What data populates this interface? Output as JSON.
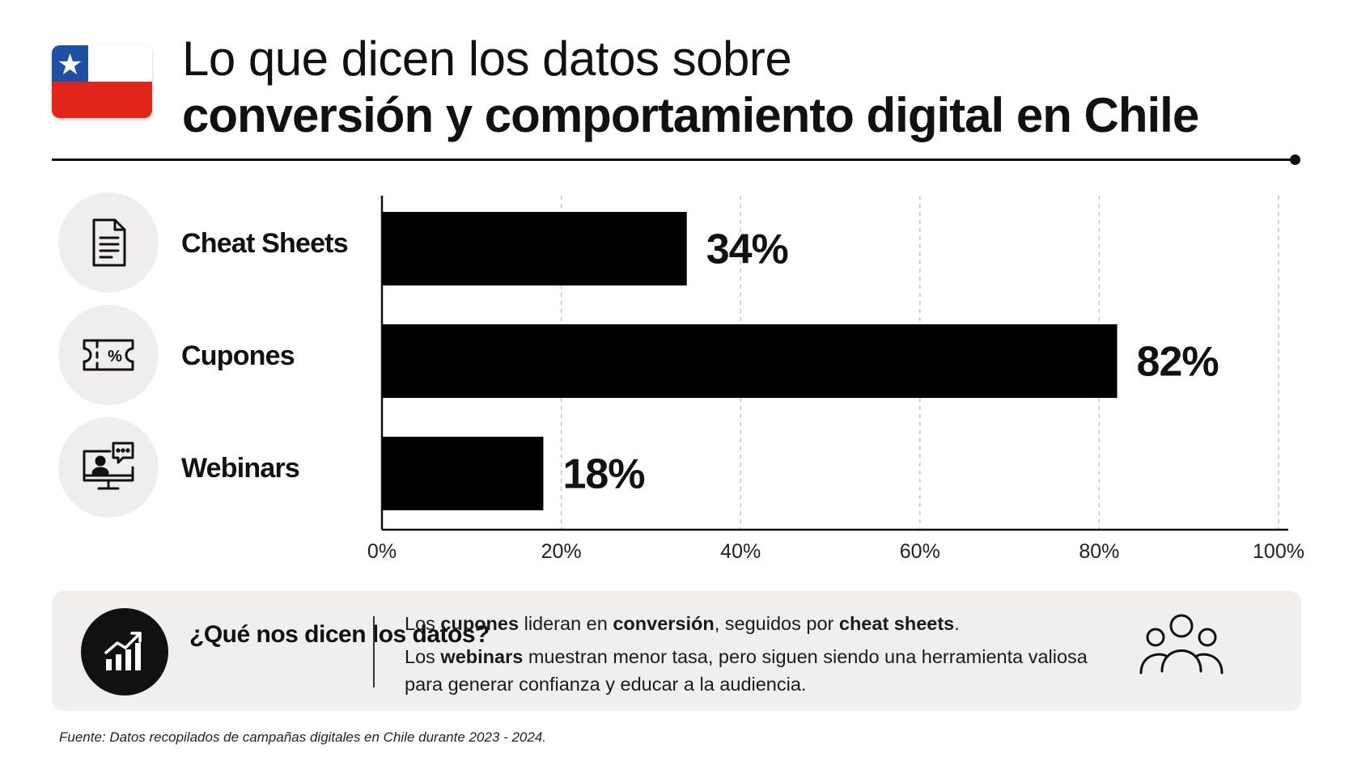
{
  "header": {
    "flag_icon": "chile-flag-icon",
    "title_line1": "Lo que dicen los datos sobre",
    "title_line2": "conversión y comportamiento digital en Chile"
  },
  "categories": [
    {
      "label": "Cheat Sheets",
      "icon": "document-icon"
    },
    {
      "label": "Cupones",
      "icon": "coupon-icon"
    },
    {
      "label": "Webinars",
      "icon": "webinar-icon"
    }
  ],
  "chart_data": {
    "type": "bar",
    "orientation": "horizontal",
    "categories": [
      "Cheat Sheets",
      "Cupones",
      "Webinars"
    ],
    "values": [
      34,
      82,
      18
    ],
    "data_labels": [
      "34%",
      "82%",
      "18%"
    ],
    "xlim": [
      0,
      100
    ],
    "xticks": [
      "0%",
      "20%",
      "40%",
      "60%",
      "80%",
      "100%"
    ],
    "grid": "vertical-dashed",
    "bar_color": "#000000"
  },
  "panel": {
    "icon": "growth-chart-icon",
    "question": "¿Qué nos dicen los datos?",
    "line1": [
      {
        "t": "Los ",
        "b": false
      },
      {
        "t": "cupones",
        "b": true
      },
      {
        "t": " lideran en ",
        "b": false
      },
      {
        "t": "conversión",
        "b": true
      },
      {
        "t": ", seguidos por ",
        "b": false
      },
      {
        "t": "cheat sheets",
        "b": true
      },
      {
        "t": ".",
        "b": false
      }
    ],
    "line2": [
      {
        "t": "Los ",
        "b": false
      },
      {
        "t": "webinars",
        "b": true
      },
      {
        "t": " muestran menor tasa, pero siguen siendo una herramienta valiosa para generar confianza y educar a la audiencia.",
        "b": false
      }
    ],
    "people_icon": "audience-icon"
  },
  "source": "Fuente: Datos recopilados de campañas digitales en Chile durante 2023 - 2024."
}
